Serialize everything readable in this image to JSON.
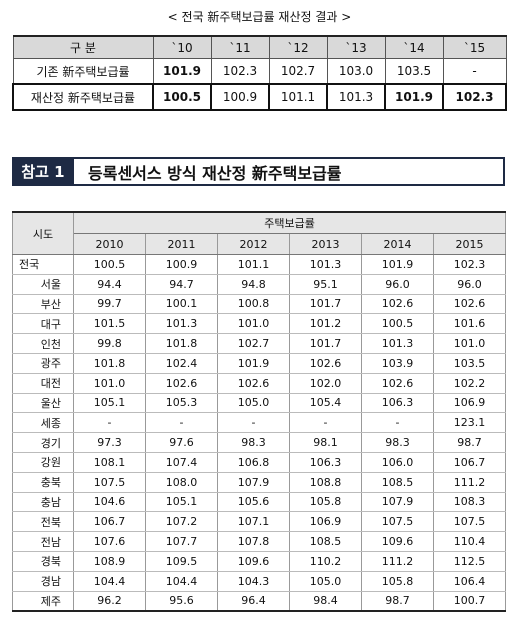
{
  "caption": "< 전국 新주택보급률 재산정 결과 >",
  "summary_table": {
    "header": [
      "구 분",
      "`10",
      "`11",
      "`12",
      "`13",
      "`14",
      "`15"
    ],
    "rows": [
      [
        "기존 新주택보급률",
        "101.9",
        "102.3",
        "102.7",
        "103.0",
        "103.5",
        "-"
      ],
      [
        "재산정 新주택보급률",
        "100.5",
        "100.9",
        "101.1",
        "101.3",
        "101.9",
        "102.3"
      ]
    ]
  },
  "section": {
    "badge": "참고 1",
    "title": "등록센서스 방식 재산정 新주택보급률"
  },
  "detail_table": {
    "region_header": "시도",
    "group_header": "주택보급률",
    "years": [
      "2010",
      "2011",
      "2012",
      "2013",
      "2014",
      "2015"
    ],
    "rows": [
      [
        "전국",
        "100.5",
        "100.9",
        "101.1",
        "101.3",
        "101.9",
        "102.3"
      ],
      [
        "서울",
        "94.4",
        "94.7",
        "94.8",
        "95.1",
        "96.0",
        "96.0"
      ],
      [
        "부산",
        "99.7",
        "100.1",
        "100.8",
        "101.7",
        "102.6",
        "102.6"
      ],
      [
        "대구",
        "101.5",
        "101.3",
        "101.0",
        "101.2",
        "100.5",
        "101.6"
      ],
      [
        "인천",
        "99.8",
        "101.8",
        "102.7",
        "101.7",
        "101.3",
        "101.0"
      ],
      [
        "광주",
        "101.8",
        "102.4",
        "101.9",
        "102.6",
        "103.9",
        "103.5"
      ],
      [
        "대전",
        "101.0",
        "102.6",
        "102.6",
        "102.0",
        "102.6",
        "102.2"
      ],
      [
        "울산",
        "105.1",
        "105.3",
        "105.0",
        "105.4",
        "106.3",
        "106.9"
      ],
      [
        "세종",
        "-",
        "-",
        "-",
        "-",
        "-",
        "123.1"
      ],
      [
        "경기",
        "97.3",
        "97.6",
        "98.3",
        "98.1",
        "98.3",
        "98.7"
      ],
      [
        "강원",
        "108.1",
        "107.4",
        "106.8",
        "106.3",
        "106.0",
        "106.7"
      ],
      [
        "충북",
        "107.5",
        "108.0",
        "107.9",
        "108.8",
        "108.5",
        "111.2"
      ],
      [
        "충남",
        "104.6",
        "105.1",
        "105.6",
        "105.8",
        "107.9",
        "108.3"
      ],
      [
        "전북",
        "106.7",
        "107.2",
        "107.1",
        "106.9",
        "107.5",
        "107.5"
      ],
      [
        "전남",
        "107.6",
        "107.7",
        "107.8",
        "108.5",
        "109.6",
        "110.4"
      ],
      [
        "경북",
        "108.9",
        "109.5",
        "109.6",
        "110.2",
        "111.2",
        "112.5"
      ],
      [
        "경남",
        "104.4",
        "104.4",
        "104.3",
        "105.0",
        "105.8",
        "106.4"
      ],
      [
        "제주",
        "96.2",
        "95.6",
        "96.4",
        "98.4",
        "98.7",
        "100.7"
      ]
    ]
  }
}
